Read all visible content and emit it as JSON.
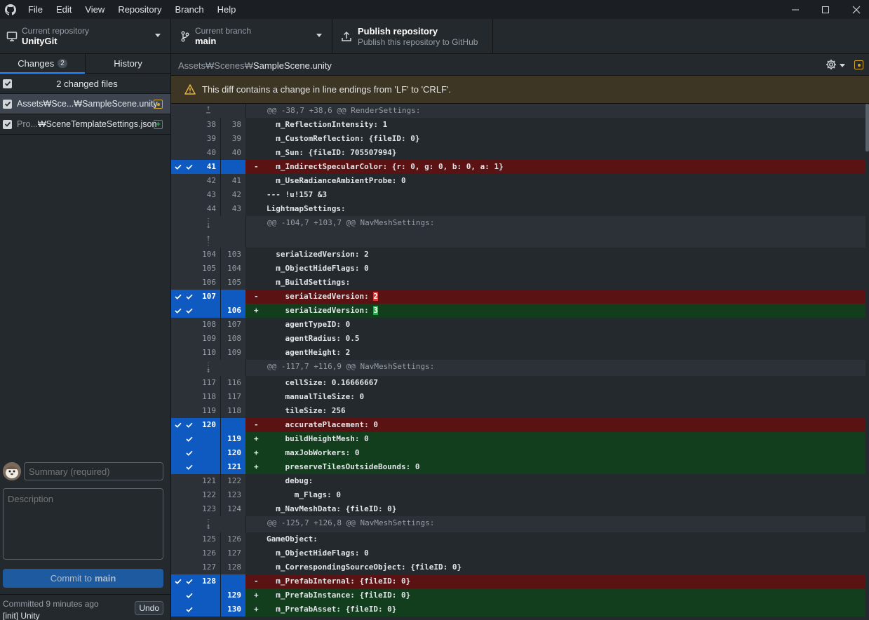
{
  "menu": [
    "File",
    "Edit",
    "View",
    "Repository",
    "Branch",
    "Help"
  ],
  "toolbar": {
    "repo_label": "Current repository",
    "repo_value": "UnityGit",
    "branch_label": "Current branch",
    "branch_value": "main",
    "publish_title": "Publish repository",
    "publish_sub": "Publish this repository to GitHub"
  },
  "tabs": {
    "changes": "Changes",
    "changes_count": "2",
    "history": "History"
  },
  "changes": {
    "header": "2 changed files",
    "files": [
      {
        "dim": "",
        "name": "Assets₩Sce...₩SampleScene.unity",
        "status": "modified"
      },
      {
        "dim": "Pro...",
        "name": "₩SceneTemplateSettings.json",
        "status": "added"
      }
    ]
  },
  "commit": {
    "summary_placeholder": "Summary (required)",
    "description_placeholder": "Description",
    "button_prefix": "Commit to",
    "button_branch": "main",
    "last_committed": "Committed 9 minutes ago",
    "last_message": "[init] Unity",
    "undo": "Undo"
  },
  "diff_header": {
    "path_prefix": "Assets₩Scenes₩",
    "path_file": "SampleScene.unity"
  },
  "warning": "This diff contains a change in line endings from 'LF' to 'CRLF'.",
  "diff_lines": [
    {
      "t": "hunk",
      "text": "@@ -38,7 +38,6 @@ RenderSettings:",
      "exp": "up"
    },
    {
      "t": "ctx",
      "o": "38",
      "n": "38",
      "text": "  m_ReflectionIntensity: 1"
    },
    {
      "t": "ctx",
      "o": "39",
      "n": "39",
      "text": "  m_CustomReflection: {fileID: 0}"
    },
    {
      "t": "ctx",
      "o": "40",
      "n": "40",
      "text": "  m_Sun: {fileID: 705507994}"
    },
    {
      "t": "del",
      "o": "41",
      "n": "",
      "text": "  m_IndirectSpecularColor: {r: 0, g: 0, b: 0, a: 1}",
      "sel": true
    },
    {
      "t": "ctx",
      "o": "42",
      "n": "41",
      "text": "  m_UseRadianceAmbientProbe: 0"
    },
    {
      "t": "ctx",
      "o": "43",
      "n": "42",
      "text": "--- !u!157 &3"
    },
    {
      "t": "ctx",
      "o": "44",
      "n": "43",
      "text": "LightmapSettings:"
    },
    {
      "t": "hunk2",
      "text": "@@ -104,7 +103,7 @@ NavMeshSettings:"
    },
    {
      "t": "ctx",
      "o": "104",
      "n": "103",
      "text": "  serializedVersion: 2"
    },
    {
      "t": "ctx",
      "o": "105",
      "n": "104",
      "text": "  m_ObjectHideFlags: 0"
    },
    {
      "t": "ctx",
      "o": "106",
      "n": "105",
      "text": "  m_BuildSettings:"
    },
    {
      "t": "del",
      "o": "107",
      "n": "",
      "text": "    serializedVersion: ",
      "hl": "2",
      "sel": true
    },
    {
      "t": "add",
      "o": "",
      "n": "106",
      "text": "    serializedVersion: ",
      "hl": "3",
      "sel": true
    },
    {
      "t": "ctx",
      "o": "108",
      "n": "107",
      "text": "    agentTypeID: 0"
    },
    {
      "t": "ctx",
      "o": "109",
      "n": "108",
      "text": "    agentRadius: 0.5"
    },
    {
      "t": "ctx",
      "o": "110",
      "n": "109",
      "text": "    agentHeight: 2"
    },
    {
      "t": "hunk",
      "text": "@@ -117,7 +116,9 @@ NavMeshSettings:",
      "exp": "both"
    },
    {
      "t": "ctx",
      "o": "117",
      "n": "116",
      "text": "    cellSize: 0.16666667"
    },
    {
      "t": "ctx",
      "o": "118",
      "n": "117",
      "text": "    manualTileSize: 0"
    },
    {
      "t": "ctx",
      "o": "119",
      "n": "118",
      "text": "    tileSize: 256"
    },
    {
      "t": "del",
      "o": "120",
      "n": "",
      "text": "    accuratePlacement: 0",
      "sel": true
    },
    {
      "t": "add",
      "o": "",
      "n": "119",
      "text": "    buildHeightMesh: 0",
      "sel": true
    },
    {
      "t": "add",
      "o": "",
      "n": "120",
      "text": "    maxJobWorkers: 0",
      "sel": true
    },
    {
      "t": "add",
      "o": "",
      "n": "121",
      "text": "    preserveTilesOutsideBounds: 0",
      "sel": true
    },
    {
      "t": "ctx",
      "o": "121",
      "n": "122",
      "text": "    debug:"
    },
    {
      "t": "ctx",
      "o": "122",
      "n": "123",
      "text": "      m_Flags: 0"
    },
    {
      "t": "ctx",
      "o": "123",
      "n": "124",
      "text": "  m_NavMeshData: {fileID: 0}"
    },
    {
      "t": "hunk",
      "text": "@@ -125,7 +126,8 @@ NavMeshSettings:",
      "exp": "both"
    },
    {
      "t": "ctx",
      "o": "125",
      "n": "126",
      "text": "GameObject:"
    },
    {
      "t": "ctx",
      "o": "126",
      "n": "127",
      "text": "  m_ObjectHideFlags: 0"
    },
    {
      "t": "ctx",
      "o": "127",
      "n": "128",
      "text": "  m_CorrespondingSourceObject: {fileID: 0}"
    },
    {
      "t": "del",
      "o": "128",
      "n": "",
      "text": "  m_PrefabInternal: {fileID: 0}",
      "sel": true
    },
    {
      "t": "add",
      "o": "",
      "n": "129",
      "text": "  m_PrefabInstance: {fileID: 0}",
      "sel": true
    },
    {
      "t": "add",
      "o": "",
      "n": "130",
      "text": "  m_PrefabAsset: {fileID: 0}",
      "sel": true
    }
  ],
  "icons": {
    "logo": "github-logo-icon",
    "repo": "computer-icon",
    "branch": "branch-icon",
    "publish": "upload-icon",
    "settings": "gear-icon",
    "warning": "warning-icon"
  },
  "colors": {
    "accent": "#2188ff",
    "deleted": "#5a1212",
    "added": "#123e1e",
    "selection": "#0e5ac0",
    "warning_bg": "#3d3624"
  }
}
